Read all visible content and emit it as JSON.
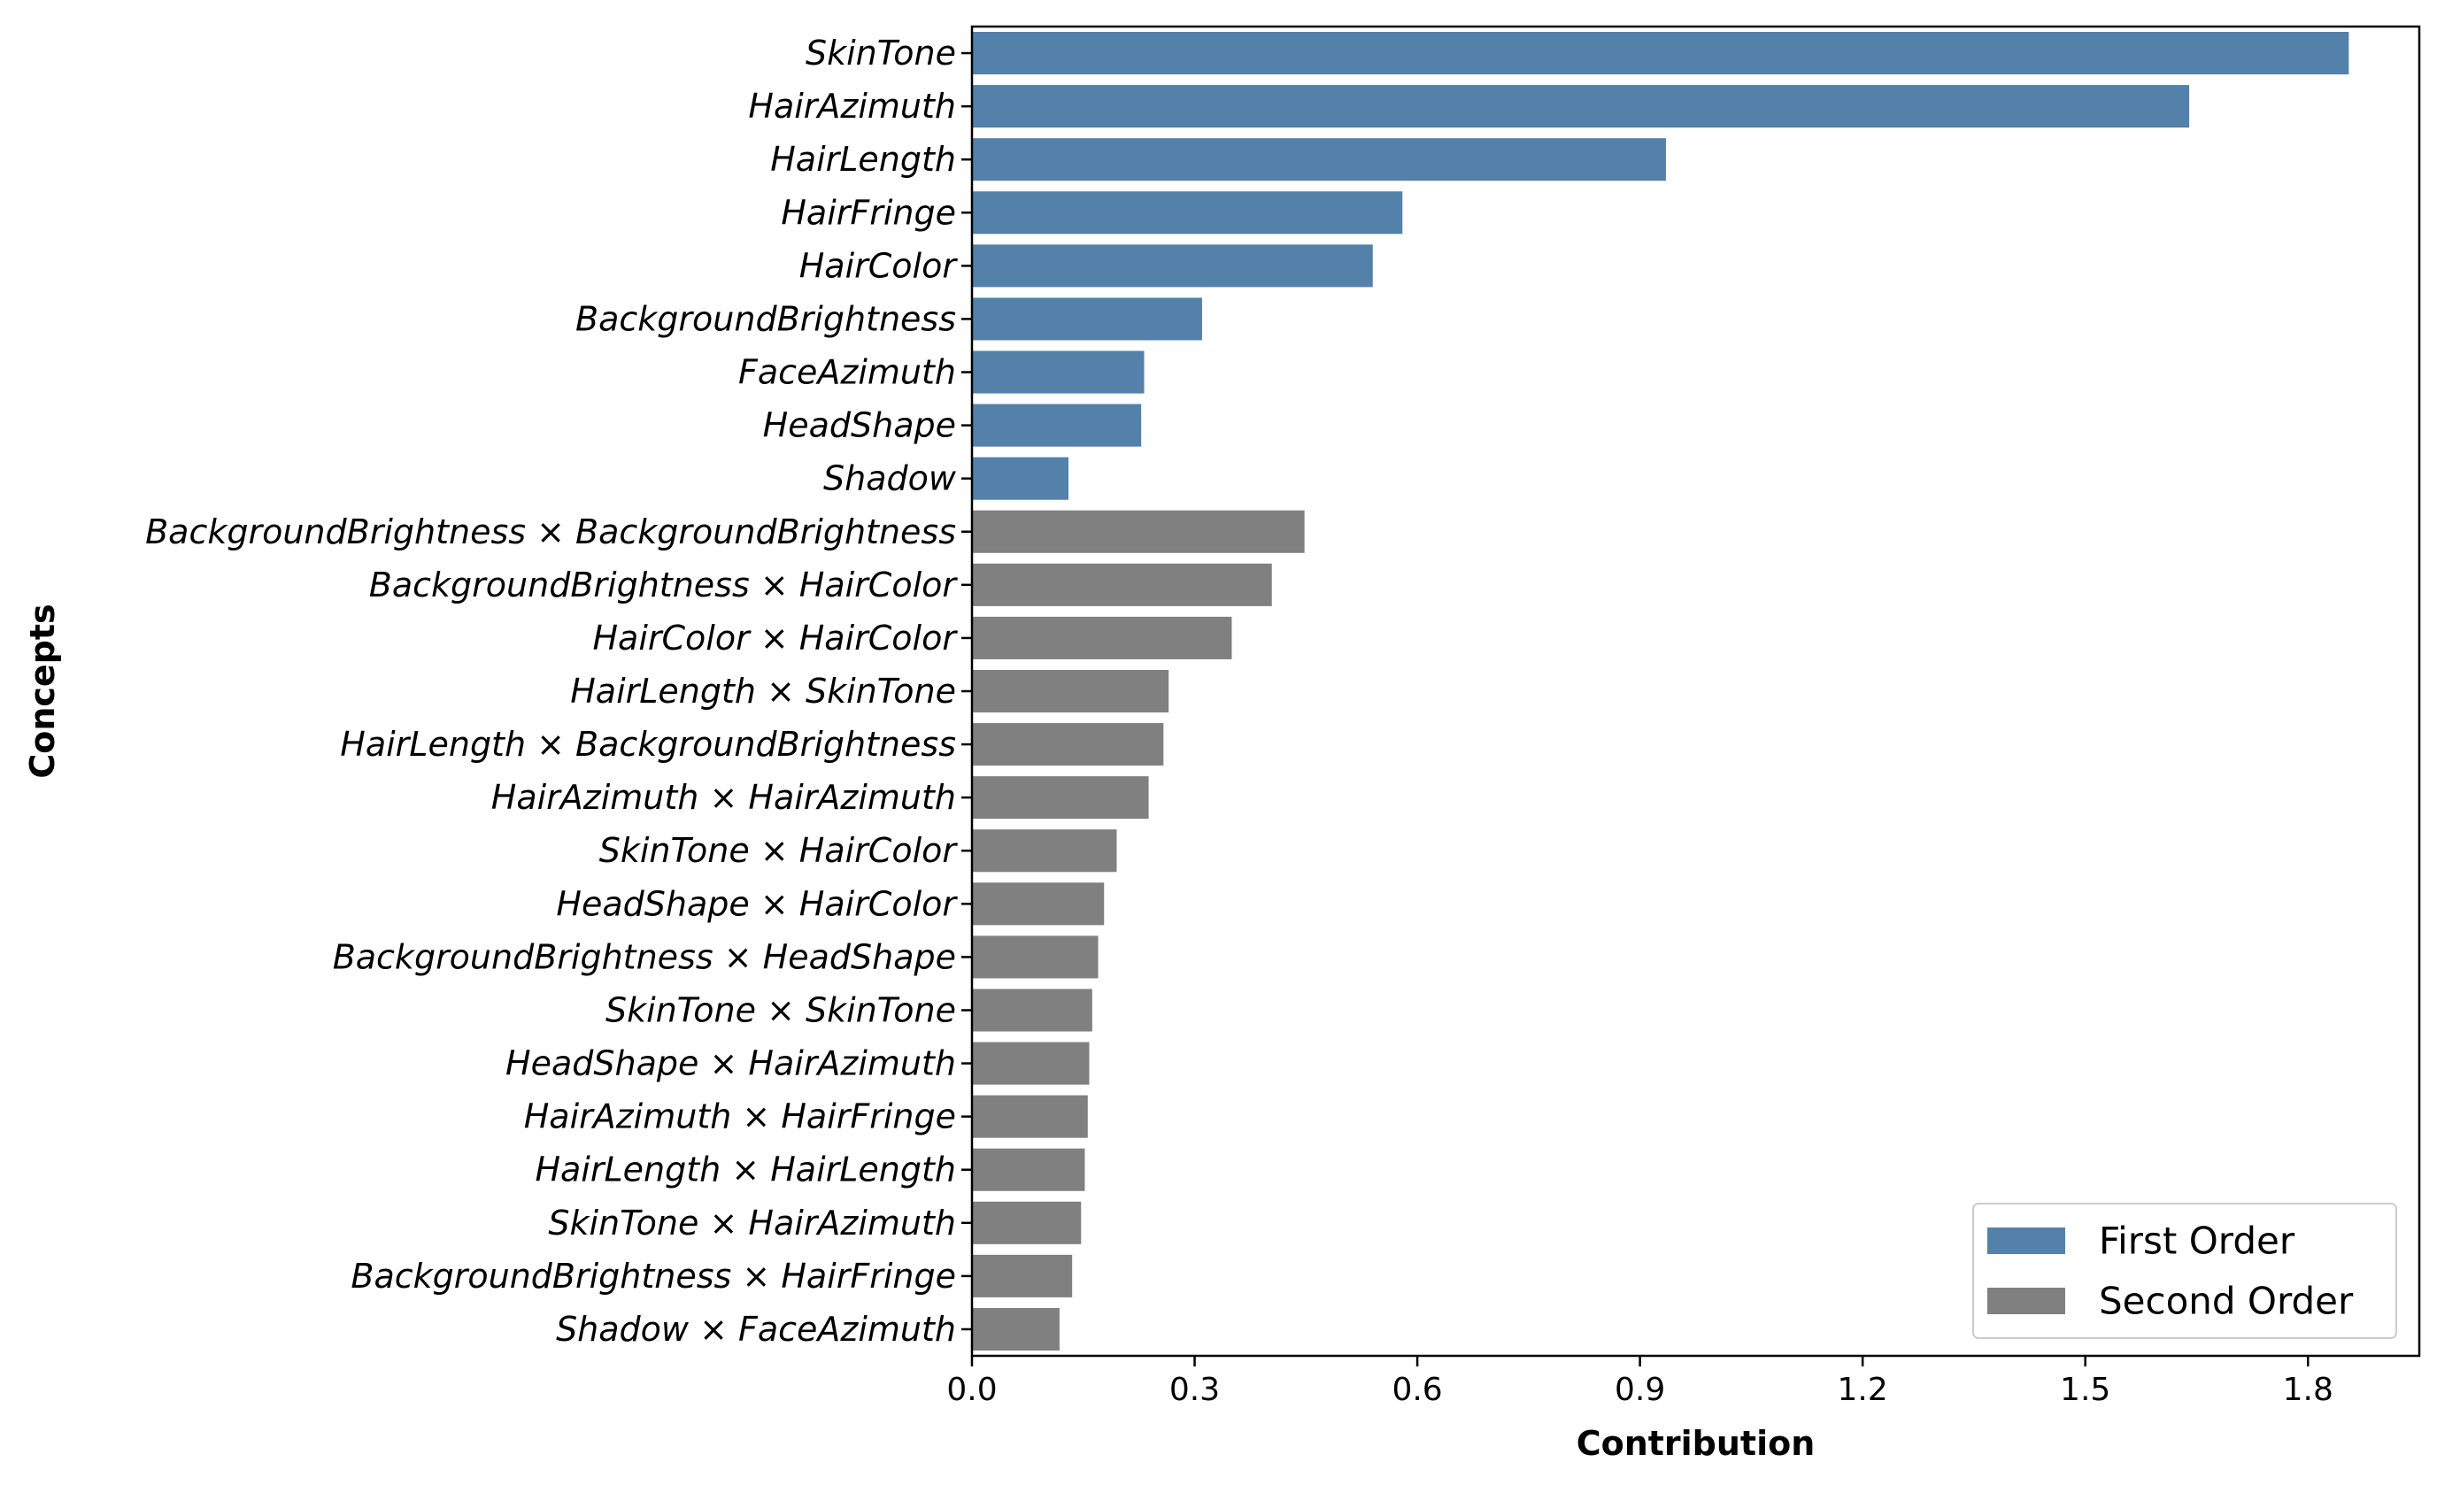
{
  "chart_data": {
    "type": "bar",
    "orientation": "horizontal",
    "title": "",
    "xlabel": "Contribution",
    "ylabel": "Concepts",
    "xlim": [
      0,
      1.95
    ],
    "xticks": [
      0.0,
      0.3,
      0.6,
      0.9,
      1.2,
      1.5,
      1.8
    ],
    "xtick_labels": [
      "0.0",
      "0.3",
      "0.6",
      "0.9",
      "1.2",
      "1.5",
      "1.8"
    ],
    "grid": false,
    "legend_position": "bottom-right",
    "series": [
      {
        "name": "First Order",
        "color": "#5381a9",
        "categories": [
          "SkinTone",
          "HairAzimuth",
          "HairLength",
          "HairFringe",
          "HairColor",
          "BackgroundBrightness",
          "FaceAzimuth",
          "HeadShape",
          "Shadow"
        ],
        "values": [
          1.855,
          1.64,
          0.935,
          0.58,
          0.54,
          0.31,
          0.232,
          0.228,
          0.13
        ]
      },
      {
        "name": "Second Order",
        "color": "#808080",
        "categories": [
          "BackgroundBrightness × BackgroundBrightness",
          "BackgroundBrightness × HairColor",
          "HairColor × HairColor",
          "HairLength × SkinTone",
          "HairLength × BackgroundBrightness",
          "HairAzimuth × HairAzimuth",
          "SkinTone × HairColor",
          "HeadShape × HairColor",
          "BackgroundBrightness × HeadShape",
          "SkinTone × SkinTone",
          "HeadShape × HairAzimuth",
          "HairAzimuth × HairFringe",
          "HairLength × HairLength",
          "SkinTone × HairAzimuth",
          "BackgroundBrightness × HairFringe",
          "Shadow × FaceAzimuth"
        ],
        "values": [
          0.448,
          0.404,
          0.35,
          0.265,
          0.258,
          0.238,
          0.195,
          0.178,
          0.17,
          0.162,
          0.158,
          0.156,
          0.152,
          0.147,
          0.135,
          0.118
        ]
      }
    ]
  }
}
